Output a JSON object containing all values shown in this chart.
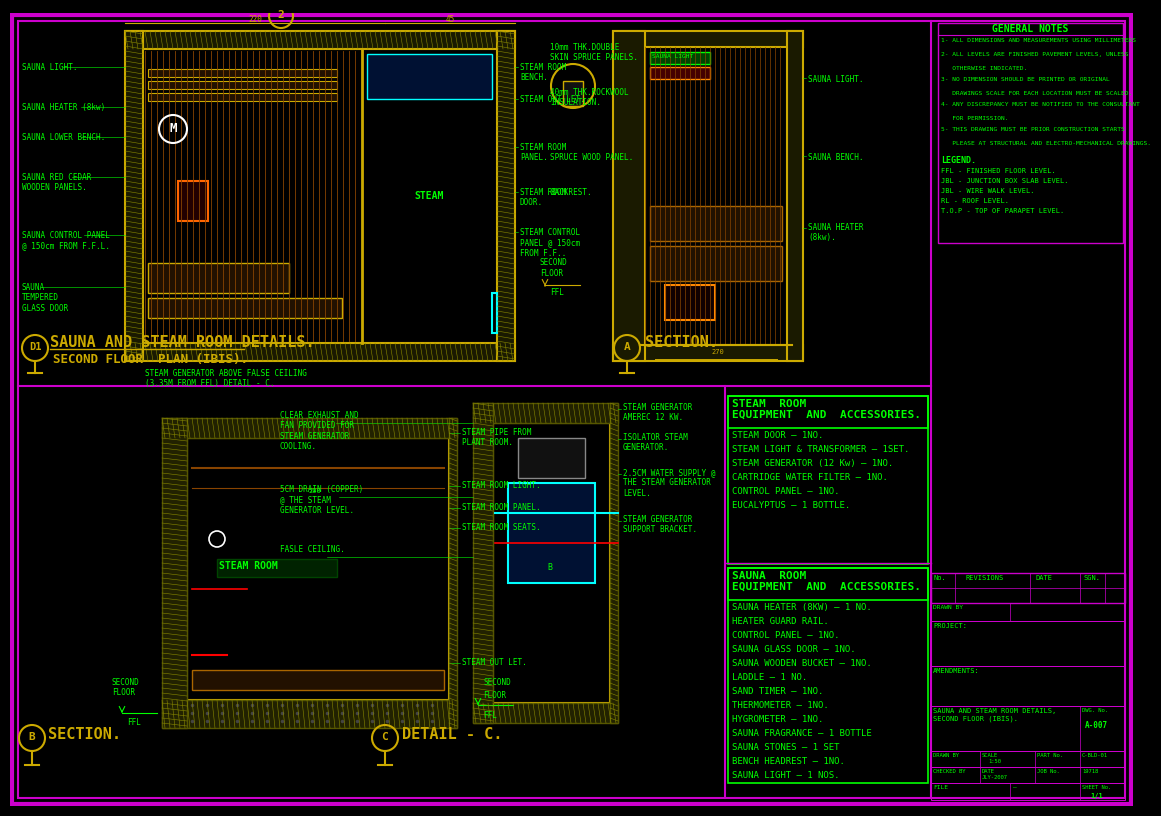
{
  "bg_color": "#000000",
  "border_color": "#cc00cc",
  "text_color": "#00ff00",
  "yellow_color": "#ccaa00",
  "cyan_color": "#00ffff",
  "white_color": "#ffffff",
  "red_color": "#ff0000",
  "orange_color": "#ff8800",
  "title": "SAUNA AND STEAM ROOM DETAILS.",
  "subtitle": "SECOND FLOOR  PLAN (IBIS).",
  "section_a_title": "SECTION.",
  "section_b_title": "SECTION.",
  "detail_c_title": "DETAIL - C.",
  "general_notes_title": "GENERAL NOTES",
  "general_notes": [
    "1- ALL DIMENSIONS AND MEASUREMENTS USING MILLIMETERS",
    "2- ALL LEVELS ARE FINISHED PAVEMENT LEVELS, UNLESS",
    "   OTHERWISE INDICATED.",
    "3- NO DIMENSION SHOULD BE PRINTED OR ORIGINAL",
    "   DRAWINGS SCALE FOR EACH LOCATION MUST BE SCALED.",
    "4- ANY DISCREPANCY MUST BE NOTIFIED TO THE CONSULTANT",
    "   FOR PERMISSION.",
    "5- THIS DRAWING MUST BE PRIOR CONSTRUCTION STARTS",
    "   PLEASE AT STRUCTURAL AND ELECTRO-MECHANICAL DRAWINGS."
  ],
  "legend_title": "LEGEND.",
  "legend_items": [
    "FFL - FINISHED FLOOR LEVEL.",
    "JBL - JUNCTION BOX SLAB LEVEL.",
    "JBL - WIRE WALK LEVEL.",
    "RL - ROOF LEVEL.",
    "T.O.P - TOP OF PARAPET LEVEL."
  ],
  "steam_room_equip_title1": "STEAM  ROOM",
  "steam_room_equip_title2": "EQUIPMENT  AND  ACCESSORIES.",
  "steam_room_equip_items": [
    "STEAM DOOR – 1NO.",
    "STEAM LIGHT & TRANSFORMER – 1SET.",
    "STEAM GENERATOR (12 Kw) – 1NO.",
    "CARTRIDGE WATER FILTER – 1NO.",
    "CONTROL PANEL – 1NO.",
    "EUCALYPTUS – 1 BOTTLE."
  ],
  "sauna_room_equip_title1": "SAUNA  ROOM",
  "sauna_room_equip_title2": "EQUIPMENT  AND  ACCESSORIES.",
  "sauna_room_equip_items": [
    "SAUNA HEATER (8KW) – 1 NO.",
    "HEATER GUARD RAIL.",
    "CONTROL PANEL – 1NO.",
    "SAUNA GLASS DOOR – 1NO.",
    "SAUNA WOODEN BUCKET – 1NO.",
    "LADDLE – 1 NO.",
    "SAND TIMER – 1NO.",
    "THERMOMETER – 1NO.",
    "HYGROMETER – 1NO.",
    "SAUNA FRAGRANCE – 1 BOTTLE",
    "SAUNA STONES – 1 SET",
    "BENCH HEADREST – 1NO.",
    "SAUNA LIGHT – 1 NOS."
  ],
  "title_block_drawing_title": "SAUNA AND STEAM ROOM DETAILS,\nSECOND FLOOR (IBIS).",
  "title_block_dwg_no": "A-007",
  "title_block_sheet": "1/1",
  "title_block_scale": "1:50",
  "title_block_part": "C-BLD-01",
  "title_block_date": "JLY-2007",
  "title_block_job": "19718"
}
